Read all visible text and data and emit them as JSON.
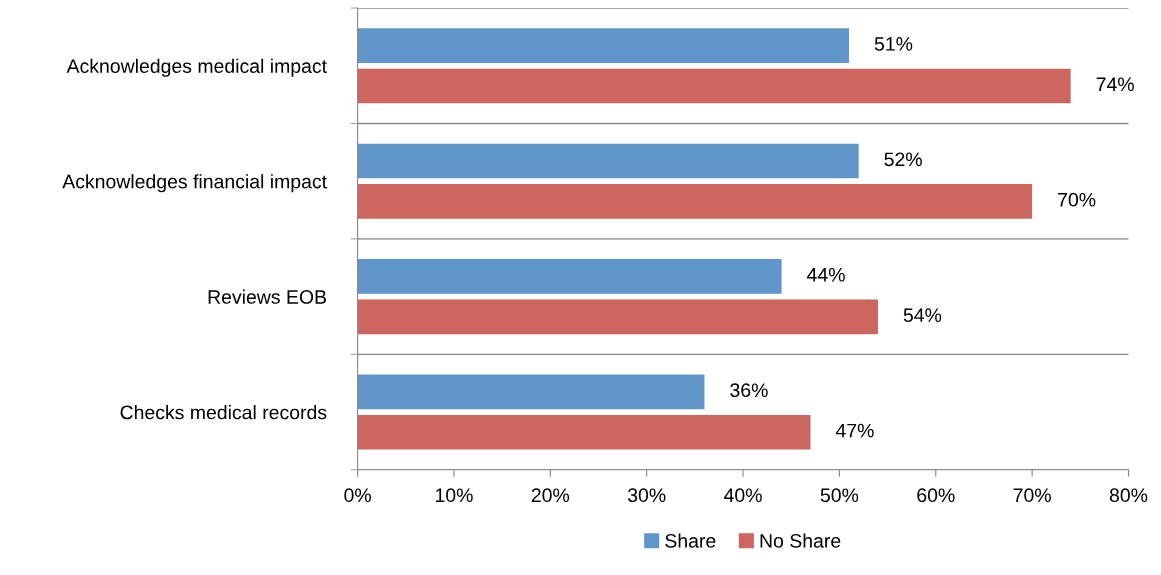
{
  "chart_data": {
    "type": "bar",
    "orientation": "horizontal",
    "categories": [
      "Acknowledges medical impact",
      "Acknowledges financial impact",
      "Reviews EOB",
      "Checks medical records"
    ],
    "series": [
      {
        "name": "Share",
        "color": "#6096c9",
        "values": [
          51,
          52,
          44,
          36
        ],
        "value_labels": [
          "51%",
          "52%",
          "44%",
          "36%"
        ]
      },
      {
        "name": "No Share",
        "color": "#cd665f",
        "values": [
          74,
          70,
          54,
          47
        ],
        "value_labels": [
          "74%",
          "70%",
          "54%",
          "47%"
        ]
      }
    ],
    "xlim": [
      0,
      80
    ],
    "xticks": [
      {
        "value": 0,
        "label": "0%"
      },
      {
        "value": 10,
        "label": "10%"
      },
      {
        "value": 20,
        "label": "20%"
      },
      {
        "value": 30,
        "label": "30%"
      },
      {
        "value": 40,
        "label": "40%"
      },
      {
        "value": 50,
        "label": "50%"
      },
      {
        "value": 60,
        "label": "60%"
      },
      {
        "value": 70,
        "label": "70%"
      },
      {
        "value": 80,
        "label": "80%"
      }
    ],
    "grid": "y",
    "legend": "bottom"
  }
}
